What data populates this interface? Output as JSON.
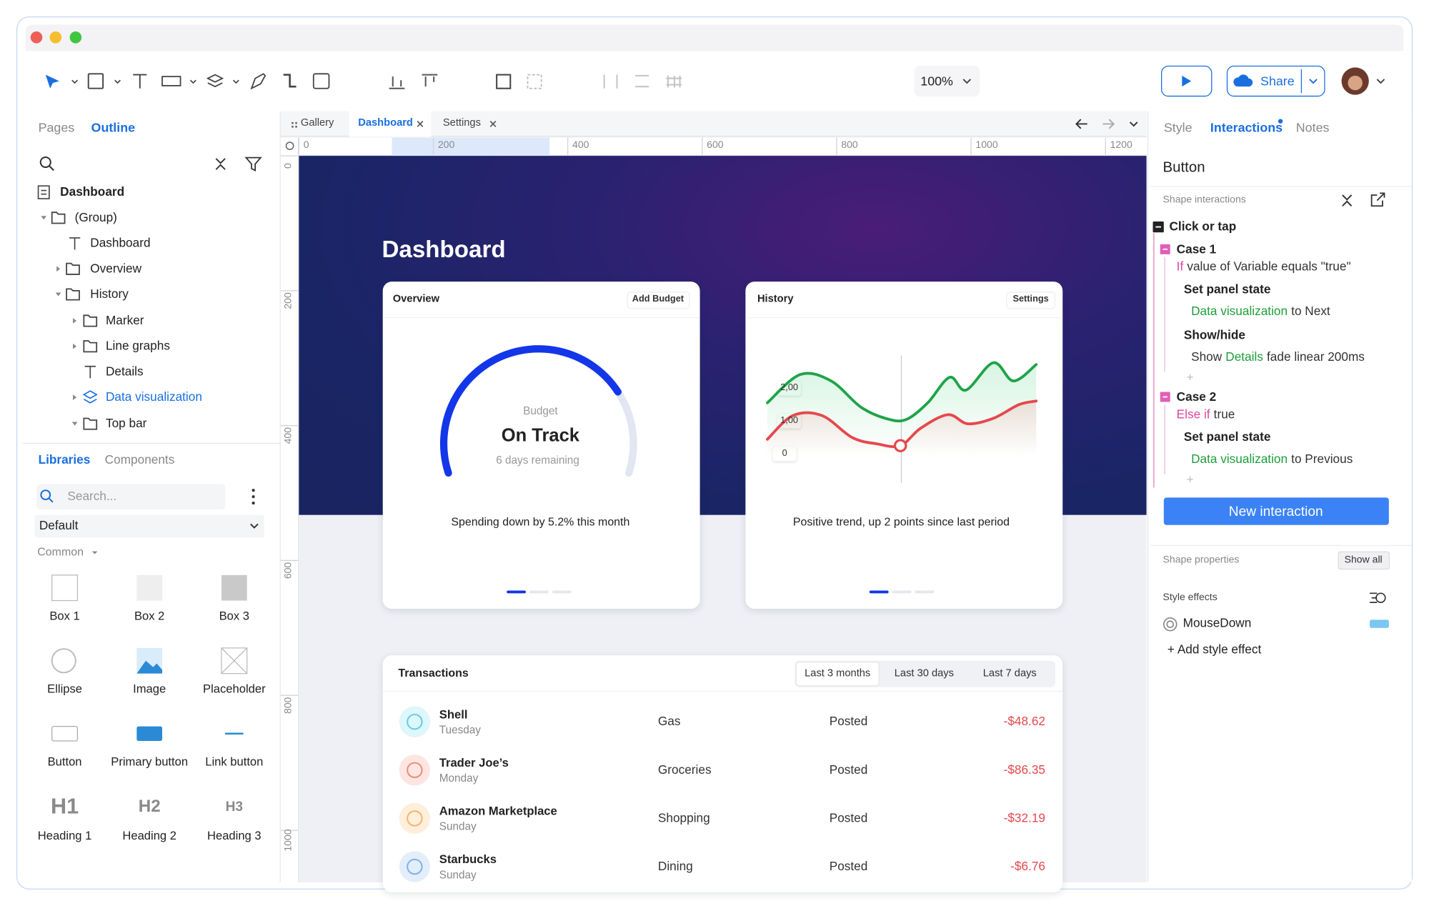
{
  "window": {
    "zoom": "100%",
    "share": "Share"
  },
  "outline": {
    "tabs": [
      "Pages",
      "Outline"
    ],
    "tree": [
      "Dashboard",
      "(Group)",
      "Dashboard",
      "Overview",
      "History",
      "Marker",
      "Line graphs",
      "Details",
      "Data visualization",
      "Top bar"
    ]
  },
  "libraries": {
    "tabs": [
      "Libraries",
      "Components"
    ],
    "search": "Search...",
    "library": "Default",
    "section": "Common",
    "items": [
      "Box 1",
      "Box 2",
      "Box 3",
      "Ellipse",
      "Image",
      "Placeholder",
      "Button",
      "Primary button",
      "Link button",
      "Heading 1",
      "Heading 2",
      "Heading 3"
    ],
    "headings": [
      "H1",
      "H2",
      "H3"
    ]
  },
  "canvas": {
    "tabs": [
      "Gallery",
      "Dashboard",
      "Settings"
    ],
    "ruler_x": [
      0,
      200,
      400,
      600,
      800,
      1000,
      1200
    ],
    "ruler_y": [
      0,
      200,
      400,
      600,
      800,
      1000
    ]
  },
  "dashboard": {
    "title": "Dashboard",
    "overview": {
      "title": "Overview",
      "button": "Add Budget",
      "label": "Budget",
      "status": "On Track",
      "remaining": "6 days remaining",
      "caption": "Spending down by 5.2% this month"
    },
    "history": {
      "title": "History",
      "button": "Settings",
      "axis": [
        "2,00",
        "1,00",
        "0"
      ],
      "caption": "Positive trend, up 2 points since last period"
    },
    "transactions": {
      "title": "Transactions",
      "filters": [
        "Last 3 months",
        "Last 30 days",
        "Last 7 days"
      ],
      "rows": [
        [
          "Shell",
          "Tuesday",
          "Gas",
          "Posted",
          "-$48.62"
        ],
        [
          "Trader Joe’s",
          "Monday",
          "Groceries",
          "Posted",
          "-$86.35"
        ],
        [
          "Amazon Marketplace",
          "Sunday",
          "Shopping",
          "Posted",
          "-$32.19"
        ],
        [
          "Starbucks",
          "Sunday",
          "Dining",
          "Posted",
          "-$6.76"
        ]
      ]
    }
  },
  "inspector": {
    "tabs": [
      "Style",
      "Interactions",
      "Notes"
    ],
    "selection": "Button",
    "section": "Shape interactions",
    "trigger": "Click or tap",
    "cases": [
      {
        "name": "Case 1",
        "condition": [
          {
            "text": "If",
            "color": "#e0479e"
          },
          {
            "text": "value of Variable equals \"true\""
          }
        ],
        "actions": [
          {
            "title": "Set panel state",
            "detail": [
              {
                "text": "Data visualization",
                "color": "#1e9e3a"
              },
              {
                "text": "to Next"
              }
            ]
          },
          {
            "title": "Show/hide",
            "detail": [
              {
                "text": "Show"
              },
              {
                "text": "Details",
                "color": "#1e9e3a"
              },
              {
                "text": "fade linear 200ms"
              }
            ]
          }
        ],
        "add": "+"
      },
      {
        "name": "Case 2",
        "condition": [
          {
            "text": "Else if",
            "color": "#e0479e"
          },
          {
            "text": "true"
          }
        ],
        "actions": [
          {
            "title": "Set panel state",
            "detail": [
              {
                "text": "Data visualization",
                "color": "#1e9e3a"
              },
              {
                "text": "to Previous"
              }
            ]
          }
        ],
        "add": "+"
      }
    ],
    "button": "New interaction",
    "properties": "Shape properties",
    "show_all": "Show all",
    "effects": "Style effects",
    "effect": "MouseDown",
    "add_effect": "+ Add style effect"
  }
}
